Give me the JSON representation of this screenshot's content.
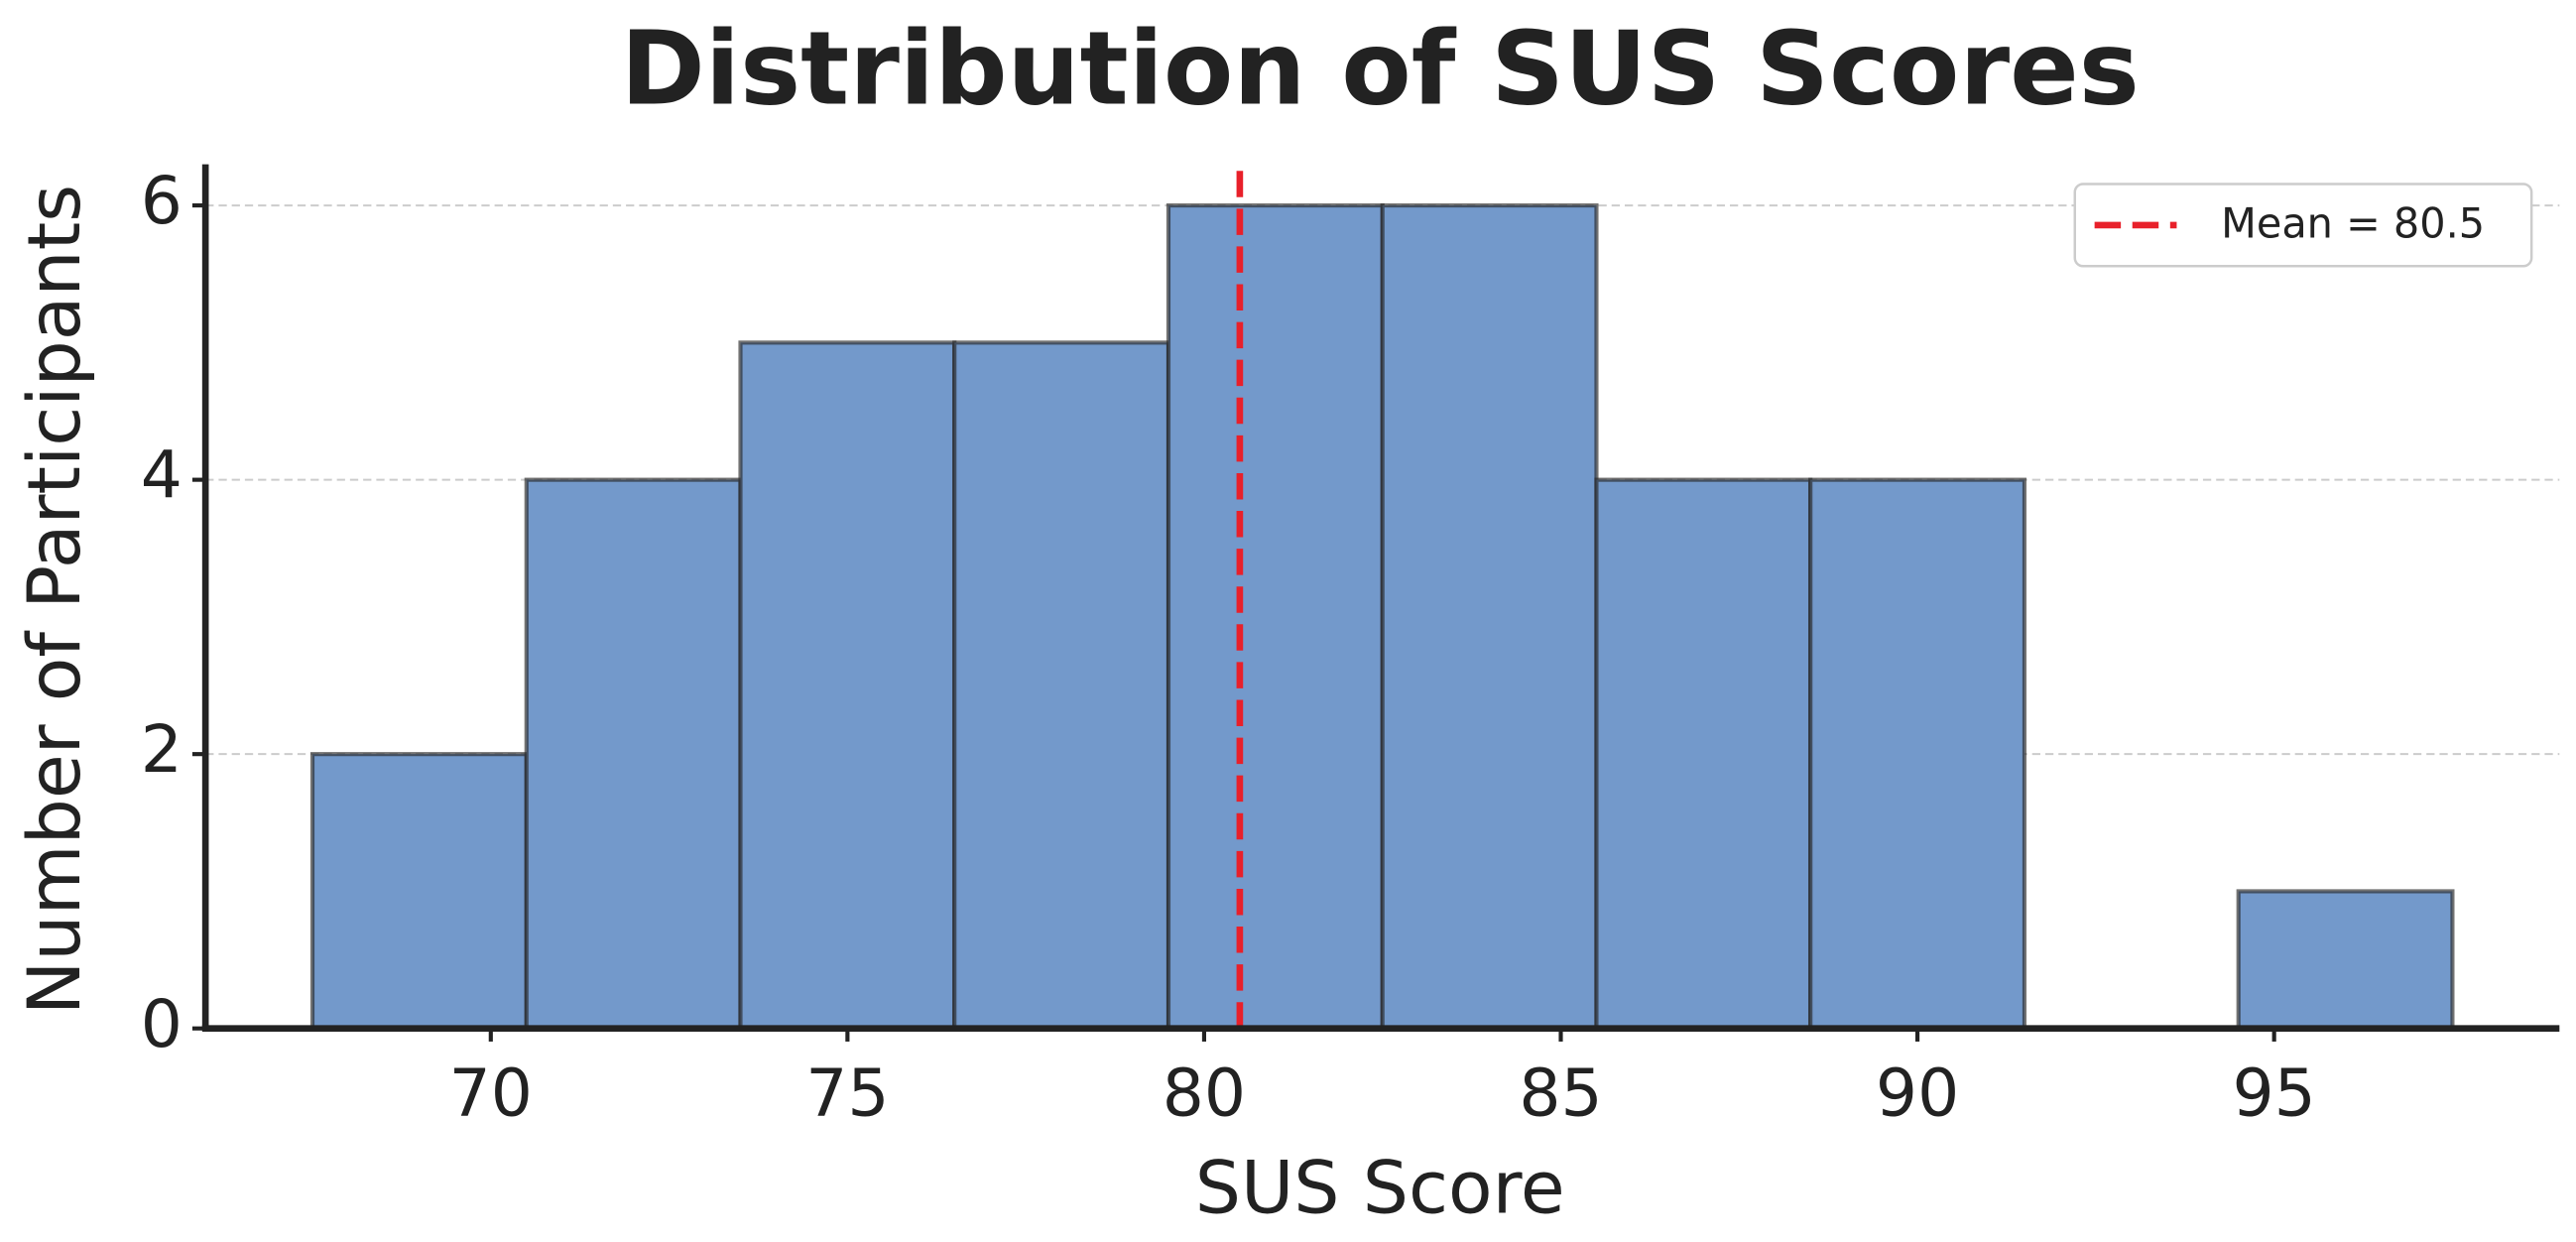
{
  "chart_data": {
    "type": "histogram",
    "title": "Distribution of SUS Scores",
    "xlabel": "SUS Score",
    "ylabel": "Number of Participants",
    "bins": [
      67.5,
      70.5,
      73.5,
      76.5,
      79.5,
      82.5,
      85.5,
      88.5,
      91.5,
      94.5,
      97.5
    ],
    "values": [
      2,
      4,
      5,
      5,
      6,
      6,
      4,
      4,
      0,
      1
    ],
    "color": "#7399cb",
    "xlim": [
      66,
      99
    ],
    "xticks": [
      70,
      75,
      80,
      85,
      90,
      95
    ],
    "ylim": [
      0,
      6.3
    ],
    "yticks": [
      0,
      2,
      4,
      6
    ],
    "grid": true,
    "mean_line": {
      "value": 80.5,
      "label": "Mean = 80.5",
      "color": "#e8202a"
    },
    "legend": "upper right"
  }
}
